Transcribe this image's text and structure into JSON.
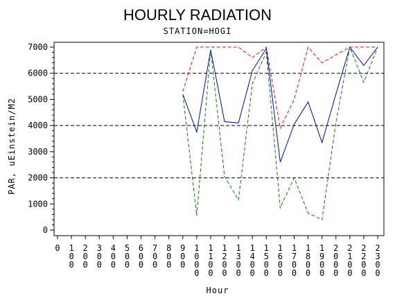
{
  "chart_data": {
    "type": "line",
    "title": "HOURLY RADIATION",
    "subtitle": "STATION=HOGI",
    "xlabel": "Hour",
    "ylabel": "PAR, uEinstein/M2",
    "xlim": [
      0,
      23
    ],
    "ylim": [
      0,
      7000
    ],
    "x_tick_labels": [
      "0",
      "100",
      "200",
      "300",
      "400",
      "500",
      "600",
      "700",
      "800",
      "900",
      "1000",
      "1100",
      "1200",
      "1300",
      "1400",
      "1500",
      "1600",
      "1700",
      "1800",
      "1900",
      "2000",
      "2100",
      "2200",
      "2300"
    ],
    "y_ticks": [
      0,
      1000,
      2000,
      3000,
      4000,
      5000,
      6000,
      7000
    ],
    "reference_lines": [
      2000,
      4000,
      6000
    ],
    "series": [
      {
        "style": "dashed",
        "color": "#ff0000",
        "x": [
          9,
          10,
          11,
          12,
          13,
          14,
          15,
          16,
          17,
          18,
          19,
          20,
          21,
          22,
          23
        ],
        "values": [
          5300,
          7000,
          7000,
          7000,
          7000,
          6600,
          7000,
          3900,
          5000,
          7000,
          6400,
          6700,
          7000,
          7000,
          7000
        ]
      },
      {
        "style": "solid",
        "color": "#0000cc",
        "x": [
          9,
          10,
          11,
          12,
          13,
          14,
          15,
          16,
          17,
          18,
          19,
          20,
          21,
          22,
          23
        ],
        "values": [
          5200,
          3750,
          6900,
          4150,
          4100,
          6100,
          6950,
          2600,
          4050,
          4900,
          3350,
          5200,
          7000,
          6300,
          7000
        ]
      },
      {
        "style": "dashed",
        "color": "#008000",
        "x": [
          9,
          10,
          11,
          12,
          13,
          14,
          15,
          16,
          17,
          18,
          19,
          20,
          21,
          22,
          23
        ],
        "values": [
          5200,
          550,
          6900,
          2050,
          1150,
          5600,
          6800,
          850,
          2000,
          650,
          400,
          4100,
          7000,
          5650,
          7000
        ]
      }
    ]
  }
}
